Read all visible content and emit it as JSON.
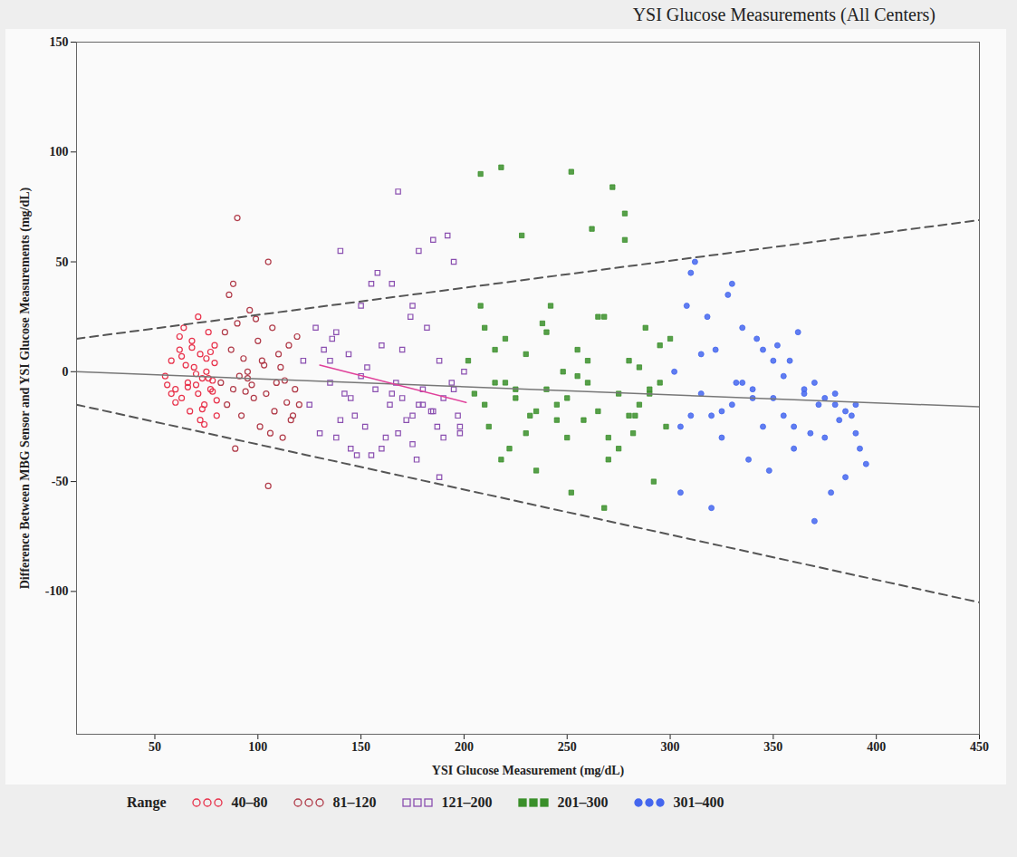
{
  "chart_data": {
    "type": "scatter",
    "title": "YSI Glucose Measurements (All Centers)",
    "x_label": "YSI Glucose Measurement (mg/dL)",
    "y_label": "Difference Between MBG Sensor and YSI Glucose Measurements (mg/dL)",
    "xlim": [
      12,
      450
    ],
    "xticks": [
      50,
      100,
      150,
      200,
      250,
      300,
      350,
      400,
      450
    ],
    "ylim": [
      -165,
      150
    ],
    "yticks": [
      -100,
      -50,
      0,
      50,
      100,
      150
    ],
    "grid": false,
    "legend": "bottom",
    "legend_title": "Range",
    "series": [
      {
        "name": "40–80",
        "color": "#e8314a",
        "marker": "circle-open",
        "x": [
          55,
          58,
          60,
          62,
          63,
          65,
          66,
          68,
          70,
          71,
          72,
          73,
          74,
          75,
          76,
          77,
          78,
          79,
          80,
          60,
          64,
          67,
          69,
          72,
          75,
          78,
          56,
          62,
          70,
          74,
          77,
          80,
          66,
          71,
          79,
          68,
          73,
          58,
          63,
          76
        ],
        "values": [
          -2,
          5,
          -8,
          10,
          -12,
          3,
          -5,
          14,
          -6,
          -10,
          8,
          -3,
          -15,
          0,
          18,
          -8,
          -4,
          12,
          -20,
          -14,
          20,
          -18,
          2,
          -22,
          6,
          -9,
          -6,
          16,
          -1,
          -24,
          9,
          -13,
          -7,
          25,
          4,
          11,
          -17,
          -10,
          7,
          -3
        ]
      },
      {
        "name": "81–120",
        "color": "#b03a48",
        "marker": "circle-open",
        "x": [
          82,
          84,
          85,
          86,
          88,
          88,
          90,
          92,
          93,
          95,
          96,
          98,
          100,
          101,
          103,
          104,
          105,
          107,
          108,
          110,
          112,
          113,
          115,
          116,
          118,
          120,
          87,
          91,
          97,
          102,
          106,
          111,
          114,
          119,
          89,
          94,
          99,
          109,
          117,
          90,
          95,
          105
        ],
        "values": [
          -5,
          18,
          -15,
          35,
          40,
          -8,
          22,
          -20,
          6,
          -3,
          28,
          -12,
          14,
          -25,
          3,
          -10,
          50,
          20,
          -18,
          8,
          -30,
          -4,
          12,
          -22,
          -8,
          -15,
          10,
          -2,
          -6,
          5,
          -28,
          2,
          -14,
          16,
          -35,
          -9,
          24,
          -5,
          -20,
          70,
          0,
          -52
        ]
      },
      {
        "name": "121–200",
        "color": "#8a4fb0",
        "marker": "square-open",
        "x": [
          122,
          125,
          128,
          130,
          132,
          135,
          136,
          138,
          140,
          142,
          144,
          145,
          147,
          150,
          152,
          153,
          155,
          157,
          158,
          160,
          162,
          164,
          165,
          167,
          168,
          170,
          172,
          174,
          175,
          177,
          178,
          180,
          182,
          184,
          185,
          187,
          188,
          190,
          192,
          194,
          195,
          197,
          198,
          200,
          140,
          150,
          160,
          170,
          180,
          190,
          145,
          155,
          165,
          175,
          185,
          195,
          135,
          175,
          138,
          148,
          168,
          178,
          188,
          198
        ],
        "values": [
          5,
          -15,
          20,
          -28,
          10,
          -5,
          15,
          -30,
          55,
          -10,
          8,
          -35,
          -20,
          30,
          -25,
          2,
          -38,
          -8,
          45,
          12,
          -30,
          -15,
          40,
          -5,
          82,
          -12,
          -22,
          25,
          -33,
          -40,
          55,
          -8,
          20,
          -18,
          60,
          -25,
          -48,
          -12,
          62,
          -5,
          50,
          -20,
          -28,
          0,
          -22,
          -2,
          -35,
          10,
          -15,
          -30,
          -12,
          40,
          -10,
          30,
          -18,
          -8,
          5,
          -20,
          18,
          -38,
          -28,
          -15,
          5,
          -25
        ]
      },
      {
        "name": "201–300",
        "color": "#3a8f2a",
        "marker": "square",
        "x": [
          202,
          205,
          208,
          210,
          212,
          215,
          218,
          220,
          222,
          225,
          228,
          230,
          232,
          235,
          238,
          240,
          242,
          245,
          248,
          250,
          252,
          255,
          258,
          260,
          262,
          265,
          268,
          270,
          272,
          275,
          278,
          280,
          282,
          285,
          288,
          290,
          292,
          295,
          298,
          300,
          210,
          220,
          230,
          240,
          250,
          260,
          270,
          280,
          290,
          215,
          235,
          255,
          275,
          295,
          225,
          245,
          265,
          285,
          208,
          218,
          252,
          268,
          278,
          283
        ],
        "values": [
          5,
          -10,
          90,
          20,
          -25,
          -5,
          93,
          15,
          -35,
          -12,
          62,
          8,
          -20,
          -45,
          22,
          -8,
          30,
          -15,
          0,
          -30,
          91,
          10,
          -22,
          -5,
          65,
          -18,
          25,
          -40,
          84,
          -10,
          72,
          5,
          -28,
          -15,
          20,
          -8,
          -50,
          12,
          -25,
          15,
          -15,
          -5,
          -28,
          18,
          -12,
          5,
          -30,
          -20,
          -10,
          10,
          -18,
          -2,
          -35,
          -5,
          -8,
          -22,
          25,
          2,
          30,
          -40,
          -55,
          -62,
          60,
          -20
        ]
      },
      {
        "name": "301–400",
        "color": "#4466ee",
        "marker": "circle",
        "x": [
          302,
          305,
          308,
          310,
          312,
          315,
          318,
          320,
          322,
          325,
          328,
          330,
          332,
          335,
          338,
          340,
          342,
          345,
          348,
          350,
          352,
          355,
          358,
          360,
          362,
          365,
          368,
          370,
          372,
          375,
          378,
          380,
          382,
          385,
          388,
          390,
          392,
          395,
          305,
          315,
          325,
          335,
          345,
          355,
          365,
          375,
          385,
          310,
          320,
          330,
          340,
          350,
          360,
          370,
          380,
          390
        ],
        "values": [
          0,
          -55,
          30,
          -20,
          50,
          -10,
          25,
          -62,
          10,
          -30,
          35,
          -15,
          -5,
          20,
          -40,
          -8,
          15,
          -25,
          -45,
          -12,
          12,
          -20,
          5,
          -35,
          18,
          -10,
          -28,
          -68,
          -15,
          -30,
          -55,
          -10,
          -22,
          -48,
          -20,
          -15,
          -35,
          -42,
          -25,
          8,
          -18,
          -5,
          10,
          -2,
          -8,
          -12,
          -18,
          45,
          -20,
          40,
          -12,
          5,
          -25,
          -5,
          -15,
          -28
        ]
      }
    ],
    "lines": [
      {
        "x": [
          12,
          450
        ],
        "values": [
          15,
          69
        ],
        "line_style": "dashed",
        "color": "#555555"
      },
      {
        "x": [
          12,
          450
        ],
        "values": [
          -15,
          -105
        ],
        "line_style": "dashed",
        "color": "#555555"
      },
      {
        "x": [
          12,
          450
        ],
        "values": [
          0,
          -16
        ],
        "line_style": "solid",
        "color": "#777777"
      },
      {
        "x": [
          130,
          201
        ],
        "values": [
          3,
          -14
        ],
        "line_style": "solid",
        "color": "#e0409a"
      }
    ]
  }
}
